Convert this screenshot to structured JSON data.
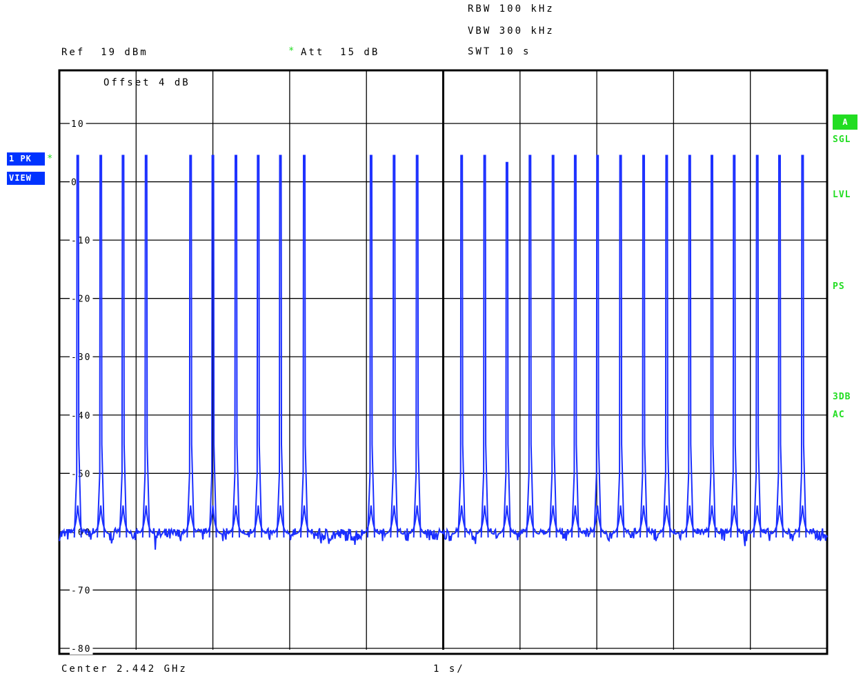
{
  "header": {
    "rbw": "RBW 100 kHz",
    "vbw": "VBW 300 kHz",
    "swt": "SWT 10 s",
    "ref": "Ref  19 dBm",
    "att_star": "*",
    "att": "Att  15 dB",
    "offset": "Offset  4 dB"
  },
  "left_flags": {
    "trace": "1 PK",
    "trace_star": "*",
    "view": "VIEW"
  },
  "right_side": {
    "badge": "A",
    "sgl": "SGL",
    "lvl": "LVL",
    "ps": "PS",
    "db3": "3DB",
    "ac": "AC"
  },
  "footer": {
    "center": "Center 2.442 GHz",
    "span": "1 s/"
  },
  "colors": {
    "trace": "#1a2eff",
    "grid": "#000000",
    "status_green": "#22dd22",
    "flag_blue": "#0033ff"
  },
  "chart_data": {
    "type": "line",
    "title": "",
    "xlabel": "",
    "ylabel": "",
    "x_unit": "s",
    "x_range": [
      0,
      10
    ],
    "ylim": [
      -89,
      19
    ],
    "y_ticks": [
      10,
      0,
      -10,
      -20,
      -30,
      -40,
      -50,
      -60,
      -70,
      -80
    ],
    "y_tick_labels": [
      "10",
      "0",
      "-10",
      "-20",
      "-30",
      "-40",
      "-50",
      "-60",
      "-70",
      "-80"
    ],
    "grid": true,
    "noise_floor_dbm": -60.5,
    "burst_peak_dbm": 4.5,
    "series": [
      {
        "values_description_free": true,
        "burst_times_s": [
          0.24,
          0.54,
          0.83,
          1.13,
          1.71,
          2.0,
          2.3,
          2.59,
          2.88,
          3.19,
          4.06,
          4.36,
          4.66,
          5.24,
          5.54,
          5.83,
          6.13,
          6.43,
          6.72,
          7.01,
          7.31,
          7.61,
          7.91,
          8.21,
          8.5,
          8.79,
          9.09,
          9.38,
          9.68
        ],
        "burst_peaks_dbm": [
          4.5,
          4.5,
          4.5,
          4.5,
          4.5,
          4.5,
          4.5,
          4.5,
          4.5,
          4.5,
          4.5,
          4.5,
          4.5,
          4.5,
          4.5,
          3.3,
          4.5,
          4.5,
          4.5,
          4.5,
          4.5,
          4.5,
          4.5,
          4.5,
          4.5,
          4.5,
          4.5,
          4.5,
          4.5
        ]
      }
    ]
  }
}
